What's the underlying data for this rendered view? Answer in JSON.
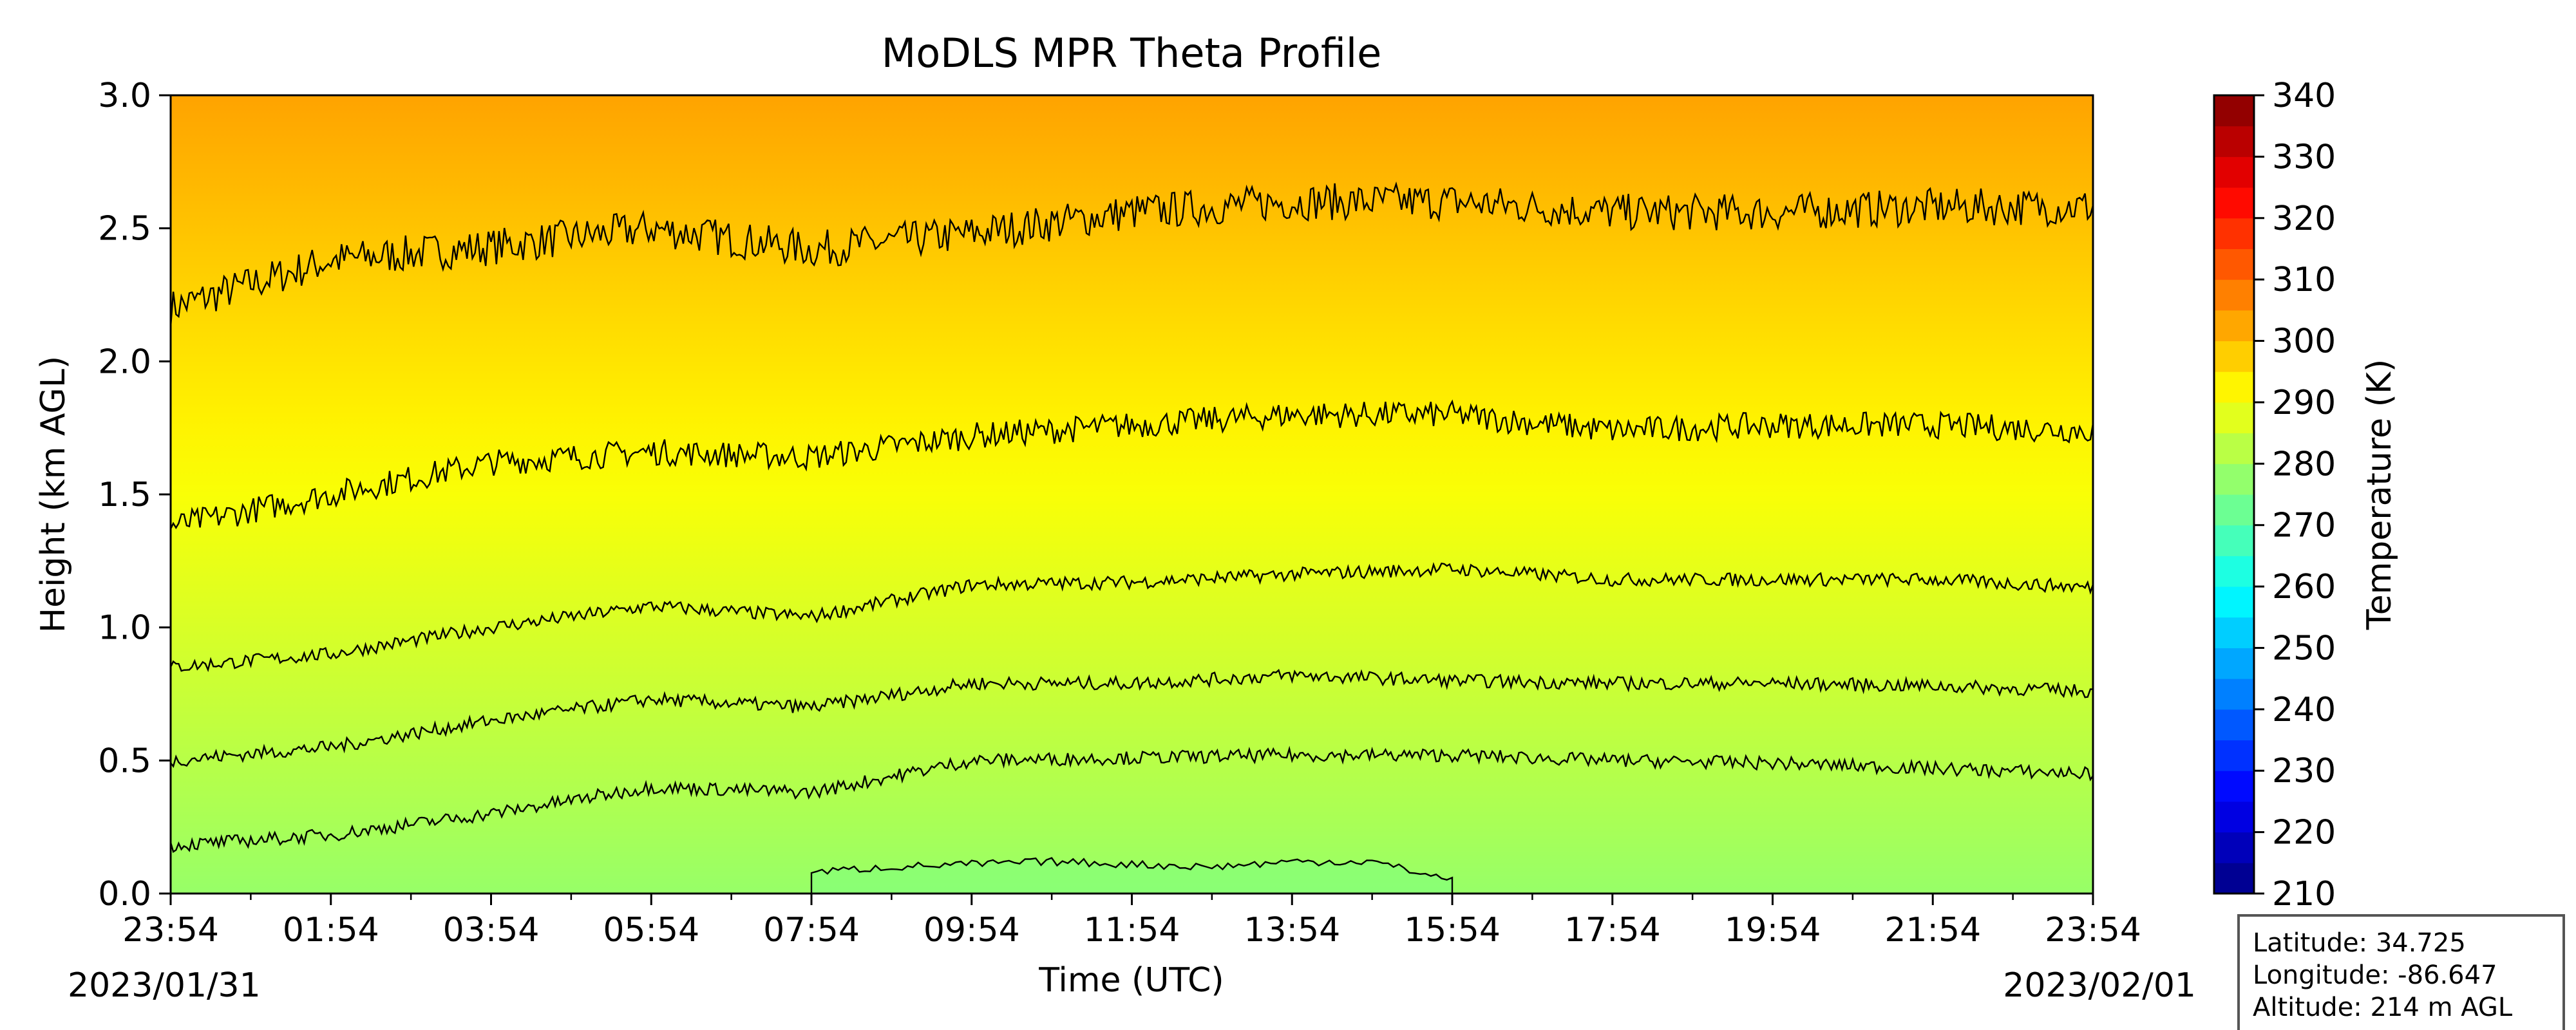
{
  "chart_data": {
    "type": "heatmap",
    "title": "MoDLS MPR Theta Profile",
    "xlabel": "Time (UTC)",
    "ylabel": "Height (km AGL)",
    "x_ticks": [
      "23:54",
      "01:54",
      "03:54",
      "05:54",
      "07:54",
      "09:54",
      "11:54",
      "13:54",
      "15:54",
      "17:54",
      "19:54",
      "21:54",
      "23:54"
    ],
    "x_range_hours": [
      0,
      24
    ],
    "start_date": "2023/01/31",
    "end_date": "2023/02/01",
    "ylim": [
      0,
      3.0
    ],
    "y_ticks": [
      "0.0",
      "0.5",
      "1.0",
      "1.5",
      "2.0",
      "2.5",
      "3.0"
    ],
    "colorbar": {
      "label": "Temperature (K)",
      "range": [
        210,
        340
      ],
      "ticks": [
        "210",
        "220",
        "230",
        "240",
        "250",
        "260",
        "270",
        "280",
        "290",
        "300",
        "310",
        "320",
        "330",
        "340"
      ],
      "colormap": "jet"
    },
    "field_description": "potential temperature increasing with height, about 278 K near surface to about 303 K at 3 km",
    "surface_theta_k": 278,
    "top_theta_k": 303,
    "contours": [
      {
        "name": "upper",
        "hours": [
          0,
          2,
          4,
          6,
          8,
          10,
          12,
          14,
          16,
          18,
          20,
          22,
          24
        ],
        "height_km": [
          2.2,
          2.38,
          2.43,
          2.5,
          2.42,
          2.48,
          2.56,
          2.6,
          2.6,
          2.56,
          2.56,
          2.58,
          2.58
        ]
      },
      {
        "name": "high",
        "hours": [
          0,
          2,
          4,
          6,
          8,
          10,
          12,
          14,
          16,
          18,
          20,
          22,
          24
        ],
        "height_km": [
          1.38,
          1.5,
          1.62,
          1.66,
          1.64,
          1.72,
          1.76,
          1.8,
          1.8,
          1.74,
          1.76,
          1.76,
          1.74
        ]
      },
      {
        "name": "mid",
        "hours": [
          0,
          2,
          4,
          6,
          8,
          10,
          12,
          14,
          16,
          18,
          20,
          22,
          24
        ],
        "height_km": [
          0.85,
          0.9,
          1.0,
          1.08,
          1.04,
          1.16,
          1.17,
          1.2,
          1.22,
          1.18,
          1.18,
          1.18,
          1.15
        ]
      },
      {
        "name": "low",
        "hours": [
          0,
          2,
          4,
          6,
          8,
          10,
          12,
          14,
          16,
          18,
          20,
          22,
          24
        ],
        "height_km": [
          0.5,
          0.55,
          0.65,
          0.73,
          0.7,
          0.79,
          0.79,
          0.82,
          0.8,
          0.79,
          0.79,
          0.78,
          0.76
        ]
      },
      {
        "name": "lowest",
        "hours": [
          0,
          2,
          4,
          6,
          8,
          10,
          12,
          14,
          16,
          18,
          20,
          22,
          24
        ],
        "height_km": [
          0.18,
          0.22,
          0.3,
          0.4,
          0.38,
          0.5,
          0.51,
          0.52,
          0.52,
          0.5,
          0.49,
          0.47,
          0.45
        ]
      }
    ],
    "surface_contour": {
      "hours": [
        8,
        9,
        10,
        11,
        12,
        13,
        14,
        15,
        16
      ],
      "height_km": [
        0.08,
        0.1,
        0.11,
        0.12,
        0.11,
        0.1,
        0.12,
        0.12,
        0.05
      ]
    },
    "info_box": [
      "Latitude: 34.725",
      "Longitude: -86.647",
      "Altitude: 214 m AGL"
    ]
  }
}
